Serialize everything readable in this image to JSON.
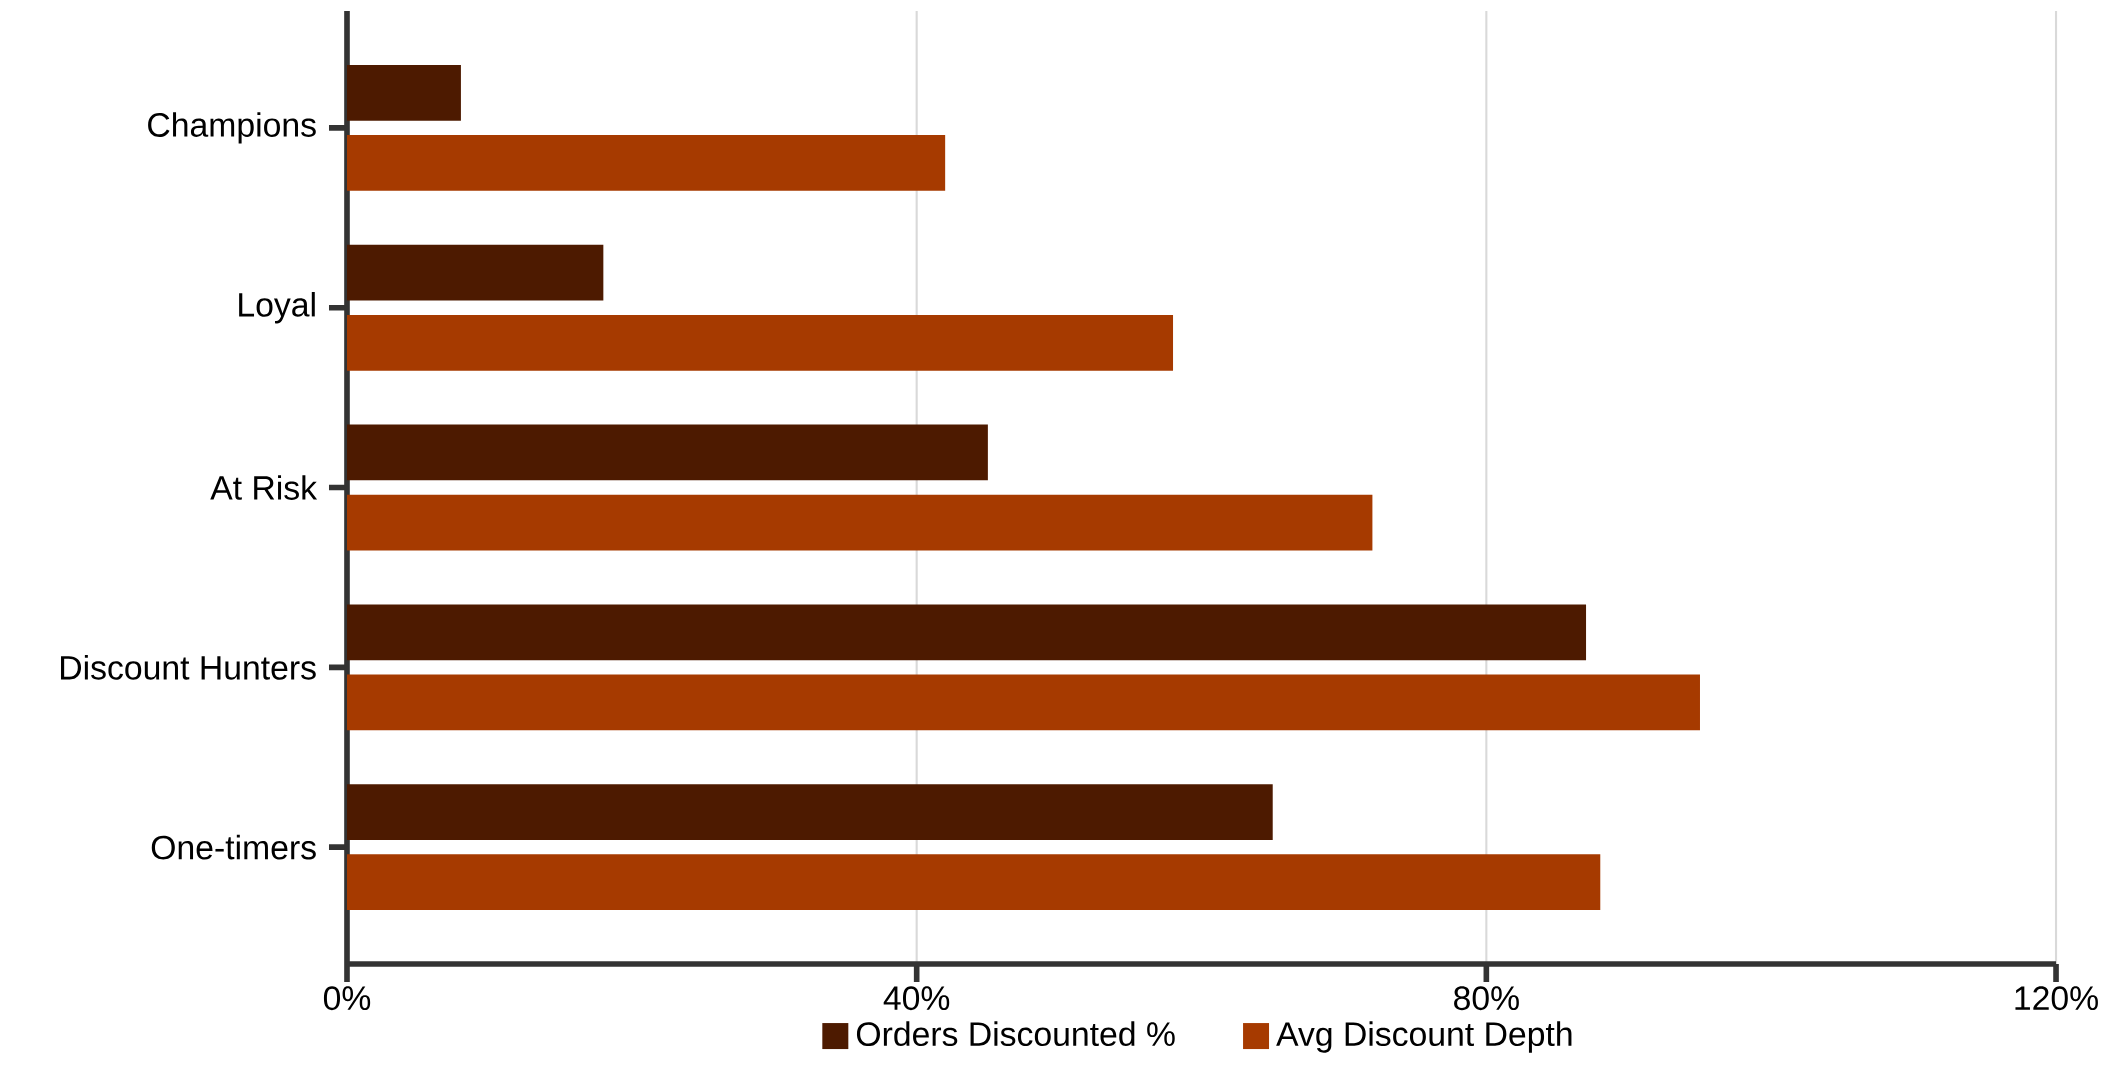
{
  "chart_data": {
    "type": "bar",
    "orientation": "horizontal",
    "categories": [
      "Champions",
      "Loyal",
      "At Risk",
      "Discount Hunters",
      "One-timers"
    ],
    "series": [
      {
        "name": "Orders Discounted %",
        "color": "#4d1a00",
        "values": [
          8,
          18,
          45,
          87,
          65
        ]
      },
      {
        "name": "Avg Discount Depth",
        "color": "#a63a00",
        "values": [
          42,
          58,
          72,
          95,
          88
        ]
      }
    ],
    "xlim": [
      0,
      120
    ],
    "xticks": [
      {
        "value": 0,
        "label": "0%"
      },
      {
        "value": 40,
        "label": "40%"
      },
      {
        "value": 80,
        "label": "80%"
      },
      {
        "value": 120,
        "label": "120%"
      }
    ],
    "grid": "x",
    "legend": "bottom"
  }
}
